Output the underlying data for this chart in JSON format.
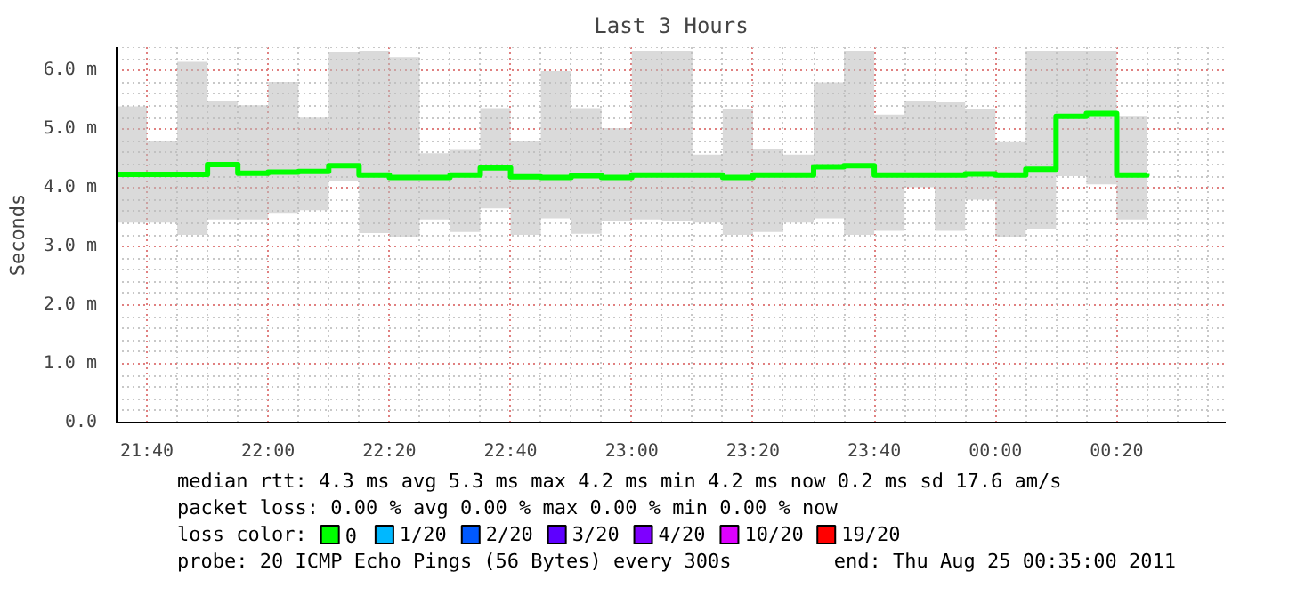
{
  "chart_data": {
    "type": "step",
    "title": "Last 3 Hours",
    "ylabel": "Seconds",
    "legend_title": "loss color:",
    "x": [
      "2011-08-24T21:35",
      "2011-08-24T21:40",
      "2011-08-24T21:45",
      "2011-08-24T21:50",
      "2011-08-24T21:55",
      "2011-08-24T22:00",
      "2011-08-24T22:05",
      "2011-08-24T22:10",
      "2011-08-24T22:15",
      "2011-08-24T22:20",
      "2011-08-24T22:25",
      "2011-08-24T22:30",
      "2011-08-24T22:35",
      "2011-08-24T22:40",
      "2011-08-24T22:45",
      "2011-08-24T22:50",
      "2011-08-24T22:55",
      "2011-08-24T23:00",
      "2011-08-24T23:05",
      "2011-08-24T23:10",
      "2011-08-24T23:15",
      "2011-08-24T23:20",
      "2011-08-24T23:25",
      "2011-08-24T23:30",
      "2011-08-24T23:35",
      "2011-08-24T23:40",
      "2011-08-24T23:45",
      "2011-08-24T23:50",
      "2011-08-24T23:55",
      "2011-08-25T00:00",
      "2011-08-25T00:05",
      "2011-08-25T00:10",
      "2011-08-25T00:15",
      "2011-08-25T00:20",
      "2011-08-25T00:25"
    ],
    "series": [
      {
        "name": "0",
        "color": "#00ff00",
        "values": [
          4.23,
          4.23,
          4.23,
          4.4,
          4.25,
          4.27,
          4.28,
          4.38,
          4.22,
          4.18,
          4.18,
          4.22,
          4.34,
          4.19,
          4.18,
          4.21,
          4.18,
          4.22,
          4.22,
          4.22,
          4.18,
          4.22,
          4.22,
          4.36,
          4.38,
          4.22,
          4.22,
          4.22,
          4.24,
          4.22,
          4.32,
          5.22,
          5.27,
          4.22,
          4.24
        ],
        "lower": [
          3.41,
          3.41,
          3.2,
          3.46,
          3.46,
          3.56,
          3.62,
          4.11,
          3.23,
          3.17,
          3.46,
          3.25,
          3.65,
          3.2,
          3.48,
          3.22,
          3.44,
          3.46,
          3.44,
          3.41,
          3.2,
          3.25,
          3.41,
          3.48,
          3.2,
          3.27,
          4.01,
          3.27,
          3.8,
          3.17,
          3.3,
          4.2,
          4.06,
          3.46,
          3.46
        ],
        "upper": [
          5.39,
          4.8,
          6.15,
          5.48,
          5.41,
          5.81,
          5.2,
          6.32,
          6.34,
          6.23,
          4.59,
          4.65,
          5.36,
          4.8,
          5.99,
          5.36,
          5.02,
          6.34,
          6.34,
          4.57,
          5.34,
          4.67,
          4.57,
          5.8,
          6.34,
          5.25,
          5.48,
          5.46,
          5.34,
          4.78,
          6.34,
          6.34,
          6.34,
          5.23,
          5.48
        ]
      },
      {
        "name": "1/20",
        "color": "#00b8ff",
        "values": [
          null,
          null,
          null,
          null,
          null,
          null,
          null,
          null,
          null,
          null,
          null,
          null,
          null,
          null,
          null,
          null,
          null,
          null,
          null,
          null,
          null,
          null,
          null,
          null,
          null,
          null,
          null,
          null,
          null,
          null,
          null,
          null,
          null,
          null,
          null
        ]
      },
      {
        "name": "2/20",
        "color": "#0059ff",
        "values": [
          null,
          null,
          null,
          null,
          null,
          null,
          null,
          null,
          null,
          null,
          null,
          null,
          null,
          null,
          null,
          null,
          null,
          null,
          null,
          null,
          null,
          null,
          null,
          null,
          null,
          null,
          null,
          null,
          null,
          null,
          null,
          null,
          null,
          null,
          null
        ]
      },
      {
        "name": "3/20",
        "color": "#5e00ff",
        "values": [
          null,
          null,
          null,
          null,
          null,
          null,
          null,
          null,
          null,
          null,
          null,
          null,
          null,
          null,
          null,
          null,
          null,
          null,
          null,
          null,
          null,
          null,
          null,
          null,
          null,
          null,
          null,
          null,
          null,
          null,
          null,
          null,
          null,
          null,
          null
        ]
      },
      {
        "name": "4/20",
        "color": "#7e00ff",
        "values": [
          null,
          null,
          null,
          null,
          null,
          null,
          null,
          null,
          null,
          null,
          null,
          null,
          null,
          null,
          null,
          null,
          null,
          null,
          null,
          null,
          null,
          null,
          null,
          null,
          null,
          null,
          null,
          null,
          null,
          null,
          null,
          null,
          null,
          null,
          null
        ]
      },
      {
        "name": "10/20",
        "color": "#dd00ff",
        "values": [
          null,
          null,
          null,
          null,
          null,
          null,
          null,
          null,
          null,
          null,
          null,
          null,
          null,
          null,
          null,
          null,
          null,
          null,
          null,
          null,
          null,
          null,
          null,
          null,
          null,
          null,
          null,
          null,
          null,
          null,
          null,
          null,
          null,
          null,
          null
        ]
      },
      {
        "name": "19/20",
        "color": "#ff0000",
        "values": [
          null,
          null,
          null,
          null,
          null,
          null,
          null,
          null,
          null,
          null,
          null,
          null,
          null,
          null,
          null,
          null,
          null,
          null,
          null,
          null,
          null,
          null,
          null,
          null,
          null,
          null,
          null,
          null,
          null,
          null,
          null,
          null,
          null,
          null,
          null
        ]
      }
    ],
    "xlim": [
      "2011-08-24T21:35",
      "2011-08-25T00:38"
    ],
    "xticks": [
      {
        "value": "2011-08-24T21:40",
        "label": "21:40"
      },
      {
        "value": "2011-08-24T22:00",
        "label": "22:00"
      },
      {
        "value": "2011-08-24T22:20",
        "label": "22:20"
      },
      {
        "value": "2011-08-24T22:40",
        "label": "22:40"
      },
      {
        "value": "2011-08-24T23:00",
        "label": "23:00"
      },
      {
        "value": "2011-08-24T23:20",
        "label": "23:20"
      },
      {
        "value": "2011-08-24T23:40",
        "label": "23:40"
      },
      {
        "value": "2011-08-25T00:00",
        "label": "00:00"
      },
      {
        "value": "2011-08-25T00:20",
        "label": "00:20"
      }
    ],
    "ylim": [
      0,
      6.4
    ],
    "yticks": [
      {
        "value": 0,
        "label": "0.0"
      },
      {
        "value": 1,
        "label": "1.0 m"
      },
      {
        "value": 2,
        "label": "2.0 m"
      },
      {
        "value": 3,
        "label": "3.0 m"
      },
      {
        "value": 4,
        "label": "4.0 m"
      },
      {
        "value": 5,
        "label": "5.0 m"
      },
      {
        "value": 6,
        "label": "6.0 m"
      }
    ],
    "grid": true,
    "legend": "bottom",
    "line_style": "solid",
    "annotations": [
      "median rtt:  4.3 ms avg  5.3 ms max  4.2 ms min  4.2 ms now  0.2 ms sd  17.6   am/s",
      "packet loss: 0.00 % avg  0.00 % max  0.00 % min  0.00 % now",
      "probe:       20 ICMP Echo Pings (56 Bytes) every 300s",
      "end: Thu Aug 25 00:35:00 2011"
    ]
  }
}
